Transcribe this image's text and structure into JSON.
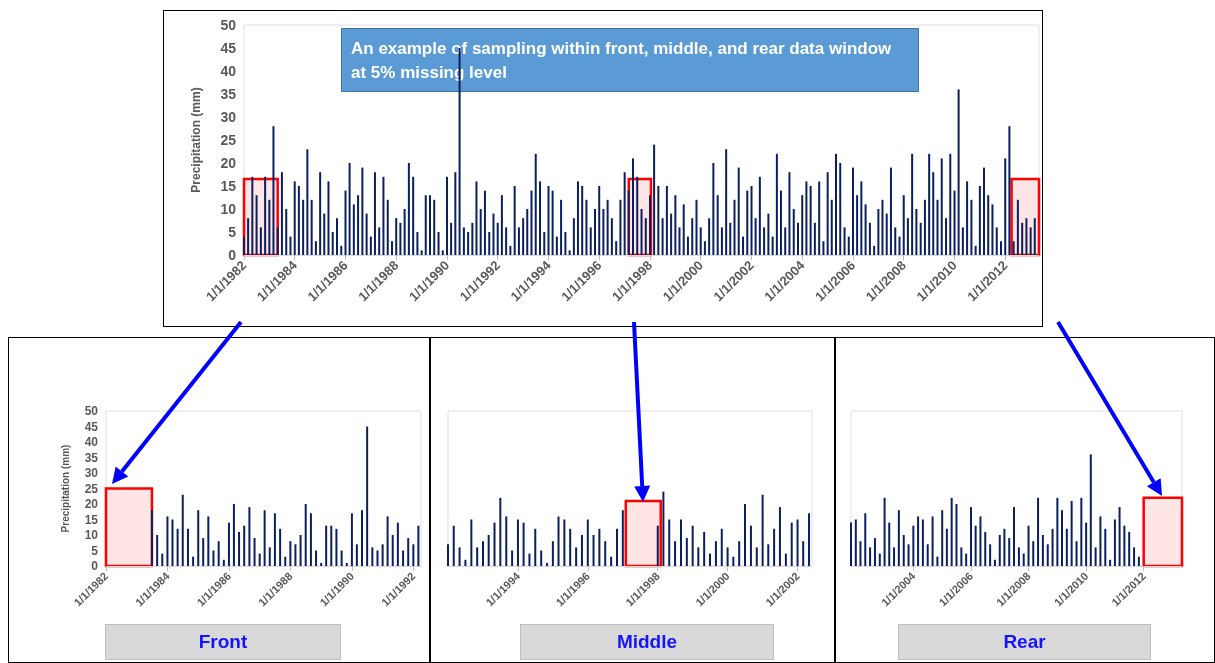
{
  "chart_data": [
    {
      "type": "bar",
      "title": "An example of sampling within front, middle, and rear data window at 5% missing level",
      "ylabel": "Precipitation (mm)",
      "color": "#0b1f5e",
      "ylim": [
        0,
        50
      ],
      "yticks": [
        0,
        5,
        10,
        15,
        20,
        25,
        30,
        35,
        40,
        45,
        50
      ],
      "xlim": [
        "1982-01-01",
        "2013-05-01"
      ],
      "xticks": [
        {
          "value": "1982-01-01",
          "label": "1/1/1982"
        },
        {
          "value": "1984-01-01",
          "label": "1/1/1984"
        },
        {
          "value": "1986-01-01",
          "label": "1/1/1986"
        },
        {
          "value": "1988-01-01",
          "label": "1/1/1988"
        },
        {
          "value": "1990-01-01",
          "label": "1/1/1990"
        },
        {
          "value": "1992-01-01",
          "label": "1/1/1992"
        },
        {
          "value": "1994-01-01",
          "label": "1/1/1994"
        },
        {
          "value": "1996-01-01",
          "label": "1/1/1996"
        },
        {
          "value": "1998-01-01",
          "label": "1/1/1998"
        },
        {
          "value": "2000-01-01",
          "label": "1/1/2000"
        },
        {
          "value": "2002-01-01",
          "label": "1/1/2002"
        },
        {
          "value": "2004-01-01",
          "label": "1/1/2004"
        },
        {
          "value": "2006-01-01",
          "label": "1/1/2006"
        },
        {
          "value": "2008-01-01",
          "label": "1/1/2008"
        },
        {
          "value": "2010-01-01",
          "label": "1/1/2010"
        },
        {
          "value": "2012-01-01",
          "label": "1/1/2012"
        }
      ],
      "bands": [
        {
          "axis": "x",
          "from": "1982-01-01",
          "to": "1983-05-01",
          "color": "#ff0000"
        },
        {
          "axis": "x",
          "from": "1997-03-01",
          "to": "1998-01-15",
          "color": "#ff0000"
        },
        {
          "axis": "x",
          "from": "2012-04-01",
          "to": "2013-05-01",
          "color": "#ff0000"
        }
      ],
      "x": [
        "1982-01",
        "1982-03",
        "1982-05",
        "1982-07",
        "1982-09",
        "1982-11",
        "1983-01",
        "1983-03",
        "1983-05",
        "1983-07",
        "1983-09",
        "1983-11",
        "1984-01",
        "1984-03",
        "1984-05",
        "1984-07",
        "1984-09",
        "1984-11",
        "1985-01",
        "1985-03",
        "1985-05",
        "1985-07",
        "1985-09",
        "1985-11",
        "1986-01",
        "1986-03",
        "1986-05",
        "1986-07",
        "1986-09",
        "1986-11",
        "1987-01",
        "1987-03",
        "1987-05",
        "1987-07",
        "1987-09",
        "1987-11",
        "1988-01",
        "1988-03",
        "1988-05",
        "1988-07",
        "1988-09",
        "1988-11",
        "1989-01",
        "1989-03",
        "1989-05",
        "1989-07",
        "1989-09",
        "1989-11",
        "1990-01",
        "1990-03",
        "1990-05",
        "1990-07",
        "1990-09",
        "1990-11",
        "1991-01",
        "1991-03",
        "1991-05",
        "1991-07",
        "1991-09",
        "1991-11",
        "1992-01",
        "1992-03",
        "1992-05",
        "1992-07",
        "1992-09",
        "1992-11",
        "1993-01",
        "1993-03",
        "1993-05",
        "1993-07",
        "1993-09",
        "1993-11",
        "1994-01",
        "1994-03",
        "1994-05",
        "1994-07",
        "1994-09",
        "1994-11",
        "1995-01",
        "1995-03",
        "1995-05",
        "1995-07",
        "1995-09",
        "1995-11",
        "1996-01",
        "1996-03",
        "1996-05",
        "1996-07",
        "1996-09",
        "1996-11",
        "1997-01",
        "1997-03",
        "1997-05",
        "1997-07",
        "1997-09",
        "1997-11",
        "1998-01",
        "1998-03",
        "1998-05",
        "1998-07",
        "1998-09",
        "1998-11",
        "1999-01",
        "1999-03",
        "1999-05",
        "1999-07",
        "1999-09",
        "1999-11",
        "2000-01",
        "2000-03",
        "2000-05",
        "2000-07",
        "2000-09",
        "2000-11",
        "2001-01",
        "2001-03",
        "2001-05",
        "2001-07",
        "2001-09",
        "2001-11",
        "2002-01",
        "2002-03",
        "2002-05",
        "2002-07",
        "2002-09",
        "2002-11",
        "2003-01",
        "2003-03",
        "2003-05",
        "2003-07",
        "2003-09",
        "2003-11",
        "2004-01",
        "2004-03",
        "2004-05",
        "2004-07",
        "2004-09",
        "2004-11",
        "2005-01",
        "2005-03",
        "2005-05",
        "2005-07",
        "2005-09",
        "2005-11",
        "2006-01",
        "2006-03",
        "2006-05",
        "2006-07",
        "2006-09",
        "2006-11",
        "2007-01",
        "2007-03",
        "2007-05",
        "2007-07",
        "2007-09",
        "2007-11",
        "2008-01",
        "2008-03",
        "2008-05",
        "2008-07",
        "2008-09",
        "2008-11",
        "2009-01",
        "2009-03",
        "2009-05",
        "2009-07",
        "2009-09",
        "2009-11",
        "2010-01",
        "2010-03",
        "2010-05",
        "2010-07",
        "2010-09",
        "2010-11",
        "2011-01",
        "2011-03",
        "2011-05",
        "2011-07",
        "2011-09",
        "2011-11",
        "2012-01",
        "2012-03",
        "2012-05",
        "2012-07",
        "2012-09",
        "2012-11",
        "2013-01",
        "2013-03"
      ],
      "values": [
        4,
        8,
        17,
        13,
        6,
        17,
        12,
        28,
        6,
        18,
        10,
        4,
        16,
        15,
        12,
        23,
        12,
        3,
        18,
        9,
        16,
        5,
        8,
        2,
        14,
        20,
        11,
        13,
        19,
        9,
        4,
        18,
        6,
        17,
        12,
        3,
        8,
        7,
        10,
        20,
        17,
        5,
        1,
        13,
        13,
        12,
        5,
        1,
        17,
        7,
        18,
        45,
        6,
        5,
        7,
        16,
        10,
        14,
        5,
        9,
        7,
        13,
        6,
        2,
        15,
        6,
        8,
        10,
        14,
        22,
        16,
        5,
        15,
        14,
        4,
        12,
        5,
        1,
        8,
        16,
        15,
        12,
        6,
        10,
        15,
        10,
        12,
        8,
        3,
        12,
        18,
        14,
        21,
        17,
        10,
        8,
        13,
        24,
        15,
        8,
        15,
        9,
        13,
        6,
        11,
        4,
        8,
        12,
        6,
        3,
        8,
        20,
        13,
        6,
        23,
        7,
        12,
        19,
        4,
        14,
        15,
        8,
        17,
        6,
        9,
        4,
        22,
        14,
        6,
        18,
        10,
        7,
        13,
        16,
        15,
        7,
        16,
        3,
        18,
        12,
        22,
        20,
        6,
        4,
        19,
        13,
        16,
        11,
        7,
        2,
        10,
        12,
        9,
        19,
        6,
        4,
        13,
        8,
        22,
        10,
        7,
        12,
        22,
        18,
        12,
        21,
        8,
        22,
        14,
        36,
        6,
        16,
        12,
        2,
        15,
        19,
        13,
        11,
        6,
        3,
        21,
        28,
        3,
        12,
        7,
        8,
        6,
        8
      ]
    },
    {
      "type": "bar",
      "xlabel": "Front",
      "ylabel": "Precipitation (mm)",
      "color": "#0b1f5e",
      "ylim": [
        0,
        50
      ],
      "yticks": [
        0,
        5,
        10,
        15,
        20,
        25,
        30,
        35,
        40,
        45,
        50
      ],
      "xlim": [
        "1982-01-01",
        "1992-04-01"
      ],
      "xticks": [
        {
          "value": "1982-01-01",
          "label": "1/1/1982"
        },
        {
          "value": "1984-01-01",
          "label": "1/1/1984"
        },
        {
          "value": "1986-01-01",
          "label": "1/1/1986"
        },
        {
          "value": "1988-01-01",
          "label": "1/1/1988"
        },
        {
          "value": "1990-01-01",
          "label": "1/1/1990"
        },
        {
          "value": "1992-01-01",
          "label": "1/1/1992"
        }
      ],
      "bands": [
        {
          "axis": "x",
          "from": "1982-01-01",
          "to": "1983-07-01",
          "color": "#ff0000"
        }
      ],
      "x": [
        "1983-07",
        "1983-09",
        "1983-11",
        "1984-01",
        "1984-03",
        "1984-05",
        "1984-07",
        "1984-09",
        "1984-11",
        "1985-01",
        "1985-03",
        "1985-05",
        "1985-07",
        "1985-09",
        "1985-11",
        "1986-01",
        "1986-03",
        "1986-05",
        "1986-07",
        "1986-09",
        "1986-11",
        "1987-01",
        "1987-03",
        "1987-05",
        "1987-07",
        "1987-09",
        "1987-11",
        "1988-01",
        "1988-03",
        "1988-05",
        "1988-07",
        "1988-09",
        "1988-11",
        "1989-01",
        "1989-03",
        "1989-05",
        "1989-07",
        "1989-09",
        "1989-11",
        "1990-01",
        "1990-03",
        "1990-05",
        "1990-07",
        "1990-09",
        "1990-11",
        "1991-01",
        "1991-03",
        "1991-05",
        "1991-07",
        "1991-09",
        "1991-11",
        "1992-01",
        "1992-03"
      ],
      "values": [
        18,
        10,
        4,
        16,
        15,
        12,
        23,
        12,
        3,
        18,
        9,
        16,
        5,
        8,
        2,
        14,
        20,
        11,
        13,
        19,
        9,
        4,
        18,
        6,
        17,
        12,
        3,
        8,
        7,
        10,
        20,
        17,
        5,
        1,
        13,
        13,
        12,
        5,
        1,
        17,
        7,
        18,
        45,
        6,
        5,
        7,
        16,
        10,
        14,
        5,
        9,
        7,
        13
      ]
    },
    {
      "type": "bar",
      "xlabel": "Middle",
      "tick_labels": "x",
      "color": "#0b1f5e",
      "ylim": [
        0,
        50
      ],
      "yticks": [
        0,
        5,
        10,
        15,
        20,
        25,
        30,
        35,
        40,
        45,
        50
      ],
      "xlim": [
        "1992-01-01",
        "2002-06-01"
      ],
      "xticks": [
        {
          "value": "1994-01-01",
          "label": "1/1/1994"
        },
        {
          "value": "1996-01-01",
          "label": "1/1/1996"
        },
        {
          "value": "1998-01-01",
          "label": "1/1/1998"
        },
        {
          "value": "2000-01-01",
          "label": "1/1/2000"
        },
        {
          "value": "2002-01-01",
          "label": "1/1/2002"
        }
      ],
      "bands": [
        {
          "axis": "x",
          "from": "1997-02-01",
          "to": "1998-02-01",
          "color": "#ff0000"
        }
      ],
      "x": [
        "1992-01",
        "1992-03",
        "1992-05",
        "1992-07",
        "1992-09",
        "1992-11",
        "1993-01",
        "1993-03",
        "1993-05",
        "1993-07",
        "1993-09",
        "1993-11",
        "1994-01",
        "1994-03",
        "1994-05",
        "1994-07",
        "1994-09",
        "1994-11",
        "1995-01",
        "1995-03",
        "1995-05",
        "1995-07",
        "1995-09",
        "1995-11",
        "1996-01",
        "1996-03",
        "1996-05",
        "1996-07",
        "1996-09",
        "1996-11",
        "1997-01",
        "1998-01",
        "1998-03",
        "1998-05",
        "1998-07",
        "1998-09",
        "1998-11",
        "1999-01",
        "1999-03",
        "1999-05",
        "1999-07",
        "1999-09",
        "1999-11",
        "2000-01",
        "2000-03",
        "2000-05",
        "2000-07",
        "2000-09",
        "2000-11",
        "2001-01",
        "2001-03",
        "2001-05",
        "2001-07",
        "2001-09",
        "2001-11",
        "2002-01",
        "2002-03",
        "2002-05"
      ],
      "values": [
        7,
        13,
        6,
        2,
        15,
        6,
        8,
        10,
        14,
        22,
        16,
        5,
        15,
        14,
        4,
        12,
        5,
        1,
        8,
        16,
        15,
        12,
        6,
        10,
        15,
        10,
        12,
        8,
        3,
        12,
        18,
        13,
        24,
        15,
        8,
        15,
        9,
        13,
        6,
        11,
        4,
        8,
        12,
        6,
        3,
        8,
        20,
        13,
        6,
        23,
        7,
        12,
        19,
        4,
        14,
        15,
        8,
        17
      ]
    },
    {
      "type": "bar",
      "xlabel": "Rear",
      "tick_labels": "x",
      "color": "#0b1f5e",
      "ylim": [
        0,
        50
      ],
      "yticks": [
        0,
        5,
        10,
        15,
        20,
        25,
        30,
        35,
        40,
        45,
        50
      ],
      "xlim": [
        "2001-11-01",
        "2013-05-01"
      ],
      "xticks": [
        {
          "value": "2004-01-01",
          "label": "1/1/2004"
        },
        {
          "value": "2006-01-01",
          "label": "1/1/2006"
        },
        {
          "value": "2008-01-01",
          "label": "1/1/2008"
        },
        {
          "value": "2010-01-01",
          "label": "1/1/2010"
        },
        {
          "value": "2012-01-01",
          "label": "1/1/2012"
        }
      ],
      "bands": [
        {
          "axis": "x",
          "from": "2012-01-01",
          "to": "2013-05-01",
          "color": "#ff0000"
        }
      ],
      "x": [
        "2001-11",
        "2002-01",
        "2002-03",
        "2002-05",
        "2002-07",
        "2002-09",
        "2002-11",
        "2003-01",
        "2003-03",
        "2003-05",
        "2003-07",
        "2003-09",
        "2003-11",
        "2004-01",
        "2004-03",
        "2004-05",
        "2004-07",
        "2004-09",
        "2004-11",
        "2005-01",
        "2005-03",
        "2005-05",
        "2005-07",
        "2005-09",
        "2005-11",
        "2006-01",
        "2006-03",
        "2006-05",
        "2006-07",
        "2006-09",
        "2006-11",
        "2007-01",
        "2007-03",
        "2007-05",
        "2007-07",
        "2007-09",
        "2007-11",
        "2008-01",
        "2008-03",
        "2008-05",
        "2008-07",
        "2008-09",
        "2008-11",
        "2009-01",
        "2009-03",
        "2009-05",
        "2009-07",
        "2009-09",
        "2009-11",
        "2010-01",
        "2010-03",
        "2010-05",
        "2010-07",
        "2010-09",
        "2010-11",
        "2011-01",
        "2011-03",
        "2011-05",
        "2011-07",
        "2011-09",
        "2011-11"
      ],
      "values": [
        14,
        15,
        8,
        17,
        6,
        9,
        4,
        22,
        14,
        6,
        18,
        10,
        7,
        13,
        16,
        15,
        7,
        16,
        3,
        18,
        12,
        22,
        20,
        6,
        4,
        19,
        13,
        16,
        11,
        7,
        2,
        10,
        12,
        9,
        19,
        6,
        4,
        13,
        8,
        22,
        10,
        7,
        12,
        22,
        18,
        12,
        21,
        8,
        22,
        14,
        36,
        6,
        16,
        12,
        2,
        15,
        19,
        13,
        11,
        6,
        3
      ]
    }
  ]
}
